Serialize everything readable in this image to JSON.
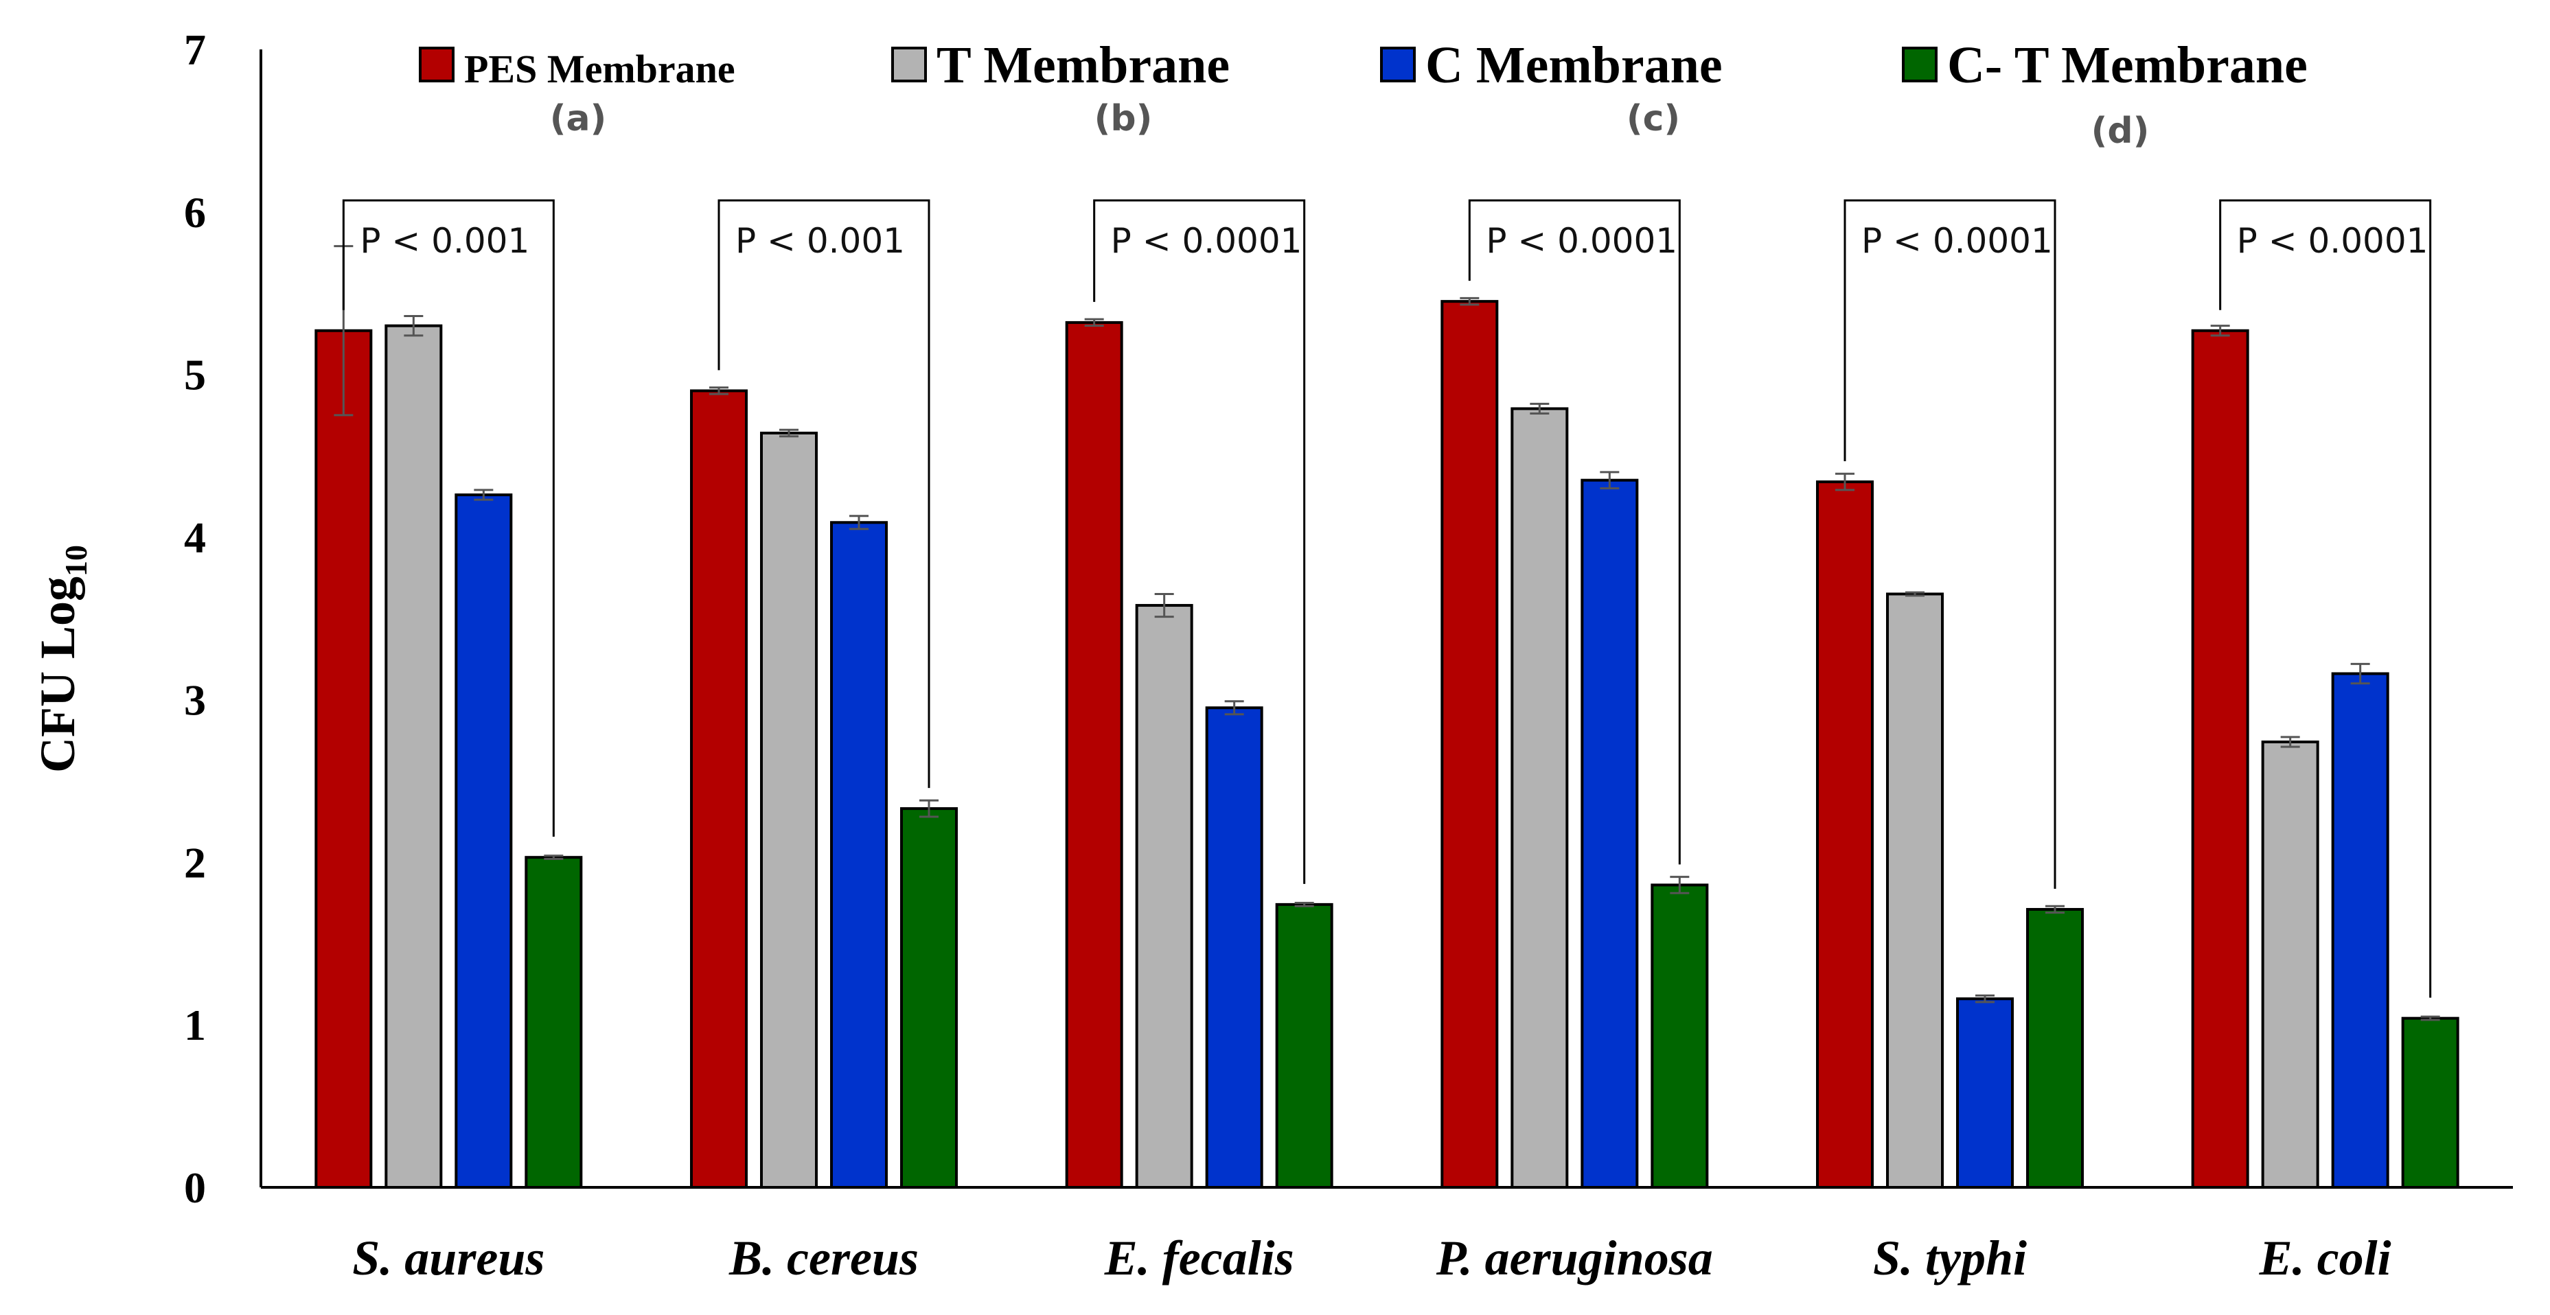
{
  "chart_data": {
    "type": "bar",
    "title": "",
    "xlabel": "",
    "ylabel": "CFU Log",
    "ylabel_subscript": "10",
    "ylim": [
      0,
      7
    ],
    "yticks": [
      "0",
      "1",
      "2",
      "3",
      "4",
      "5",
      "6",
      "7"
    ],
    "grid": false,
    "legend_position": "top",
    "categories": [
      "S. aureus",
      "B. cereus",
      "E. fecalis",
      "P. aeruginosa",
      "S. typhi",
      "E. coli"
    ],
    "series": [
      {
        "name": "PES Membrane",
        "color": "#b30000",
        "values": [
          5.27,
          4.9,
          5.32,
          5.45,
          4.34,
          5.27
        ],
        "errors": [
          0.52,
          0.02,
          0.02,
          0.02,
          0.05,
          0.03
        ]
      },
      {
        "name": "T Membrane",
        "color": "#b3b3b3",
        "values": [
          5.3,
          4.64,
          3.58,
          4.79,
          3.65,
          2.74
        ],
        "errors": [
          0.06,
          0.02,
          0.07,
          0.03,
          0.01,
          0.03
        ]
      },
      {
        "name": "C Membrane",
        "color": "#0033cc",
        "values": [
          4.26,
          4.09,
          2.95,
          4.35,
          1.16,
          3.16
        ],
        "errors": [
          0.03,
          0.04,
          0.04,
          0.05,
          0.02,
          0.06
        ]
      },
      {
        "name": "C- T Membrane",
        "color": "#006600",
        "values": [
          2.03,
          2.33,
          1.74,
          1.86,
          1.71,
          1.04
        ],
        "errors": [
          0.01,
          0.05,
          0.01,
          0.05,
          0.02,
          0.01
        ]
      }
    ],
    "annotations": [
      {
        "text": "P < 0.001",
        "category": "S. aureus"
      },
      {
        "text": "P < 0.001",
        "category": "B. cereus"
      },
      {
        "text": "P < 0.0001",
        "category": "E. fecalis"
      },
      {
        "text": "P < 0.0001",
        "category": "P. aeruginosa"
      },
      {
        "text": "P < 0.0001",
        "category": "S. typhi"
      },
      {
        "text": "P < 0.0001",
        "category": "E. coli"
      }
    ],
    "panel_labels": [
      "(a)",
      "(b)",
      "(c)",
      "(d)"
    ]
  }
}
